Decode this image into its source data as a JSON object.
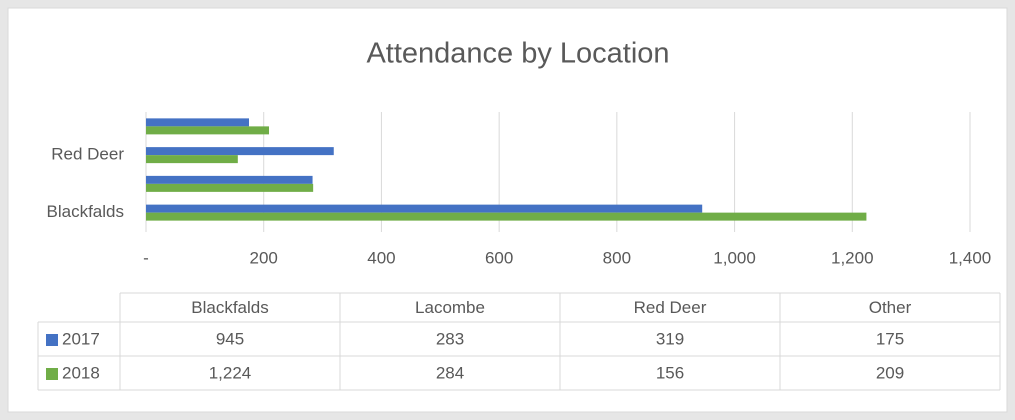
{
  "chart_data": {
    "type": "bar",
    "orientation": "horizontal",
    "title": "Attendance by Location",
    "categories": [
      "Blackfalds",
      "Lacombe",
      "Red Deer",
      "Other"
    ],
    "series": [
      {
        "name": "2017",
        "color": "#4472c4",
        "values": [
          945,
          283,
          319,
          175
        ],
        "value_labels": [
          "945",
          "283",
          "319",
          "175"
        ]
      },
      {
        "name": "2018",
        "color": "#70ad47",
        "values": [
          1224,
          284,
          156,
          209
        ],
        "value_labels": [
          "1,224",
          "284",
          "156",
          "209"
        ]
      }
    ],
    "xlim": [
      0,
      1400
    ],
    "xticks": [
      {
        "value": 0,
        "label": "-"
      },
      200,
      400,
      600,
      800,
      {
        "value": 1000,
        "label": "1,000"
      },
      {
        "value": 1200,
        "label": "1,200"
      },
      {
        "value": 1400,
        "label": "1,400"
      }
    ],
    "grid": true,
    "data_table": true
  }
}
